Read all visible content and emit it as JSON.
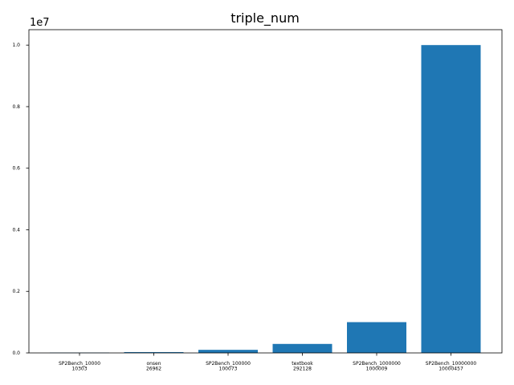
{
  "chart_data": {
    "type": "bar",
    "title": "triple_num",
    "xlabel": "",
    "ylabel": "",
    "y_offset_label": "1e7",
    "categories": [
      [
        "SP2Bench_10000",
        "10303"
      ],
      [
        "onsen",
        "26962"
      ],
      [
        "SP2Bench_100000",
        "100073"
      ],
      [
        "textbook",
        "292128"
      ],
      [
        "SP2Bench_1000000",
        "1000009"
      ],
      [
        "SP2Bench_10000000",
        "10000457"
      ]
    ],
    "values": [
      10303,
      26962,
      100073,
      292128,
      1000009,
      10000457
    ],
    "yticks": [
      0,
      2000000,
      4000000,
      6000000,
      8000000,
      10000000
    ],
    "ytick_labels": [
      "0.0",
      "0.2",
      "0.4",
      "0.6",
      "0.8",
      "1.0"
    ],
    "ylim": [
      0,
      10500480
    ],
    "bar_color": "#1f77b4",
    "grid": false,
    "legend": "none"
  }
}
